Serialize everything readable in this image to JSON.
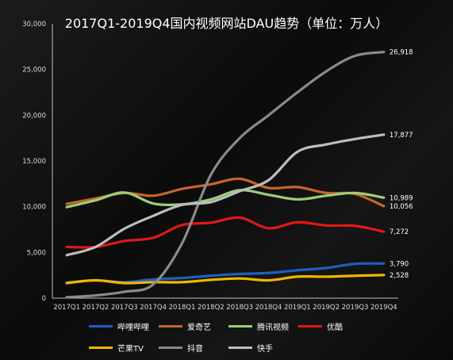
{
  "chart_data": {
    "type": "line",
    "title": "2017Q1-2019Q4国内视频网站DAU趋势（单位：万人）",
    "xlabel": "",
    "ylabel": "",
    "ylim": [
      0,
      30000
    ],
    "yticks": [
      0,
      5000,
      10000,
      15000,
      20000,
      25000,
      30000
    ],
    "ytick_labels": [
      "0",
      "5,000",
      "10,000",
      "15,000",
      "20,000",
      "25,000",
      "30,000"
    ],
    "categories": [
      "2017Q1",
      "2017Q2",
      "2017Q3",
      "2017Q4",
      "2018Q1",
      "2018Q2",
      "2018Q3",
      "2018Q4",
      "2019Q1",
      "2019Q2",
      "2019Q3",
      "2019Q4"
    ],
    "grid": false,
    "legend_position": "bottom",
    "series": [
      {
        "name": "哔哩哔哩",
        "color": "#1f5fbf",
        "values": [
          1700,
          1950,
          1750,
          2050,
          2200,
          2450,
          2650,
          2750,
          3050,
          3300,
          3750,
          3790
        ],
        "end_label": ""
      },
      {
        "name": "爱奇艺",
        "color": "#c8642a",
        "values": [
          10300,
          10900,
          11500,
          11200,
          11950,
          12450,
          13050,
          12050,
          12150,
          11500,
          11400,
          10056
        ],
        "end_label": "10,056"
      },
      {
        "name": "腾讯视频",
        "color": "#9ccf79",
        "values": [
          9950,
          10700,
          11550,
          10350,
          10250,
          10800,
          11800,
          11300,
          10800,
          11200,
          11500,
          10989
        ],
        "end_label": "10,989"
      },
      {
        "name": "优酷",
        "color": "#e01818",
        "values": [
          5600,
          5600,
          6250,
          6600,
          8000,
          8250,
          8800,
          7650,
          8300,
          7950,
          7900,
          7272
        ],
        "end_label": "7,272"
      },
      {
        "name": "芒果TV",
        "color": "#f2b600",
        "values": [
          1650,
          1950,
          1650,
          1750,
          1750,
          2000,
          2150,
          1950,
          2350,
          2350,
          2450,
          2528
        ],
        "end_label": "2,528"
      },
      {
        "name": "抖音",
        "color": "#8a8a8a",
        "values": [
          100,
          300,
          700,
          1500,
          6000,
          13500,
          17500,
          20000,
          22500,
          24800,
          26500,
          26918
        ],
        "end_label": "26,918"
      },
      {
        "name": "快手",
        "color": "#bdbdbd",
        "values": [
          4700,
          5600,
          7600,
          9000,
          10200,
          10500,
          11700,
          12900,
          16000,
          16800,
          17400,
          17877
        ],
        "end_label": "17,877"
      }
    ],
    "extra_labels": [
      {
        "value": 3790,
        "text": "3,790"
      }
    ]
  }
}
